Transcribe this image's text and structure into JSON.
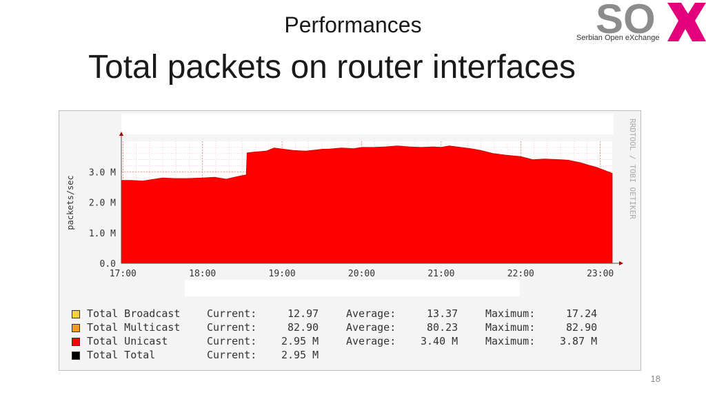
{
  "slide": {
    "subtitle": "Performances",
    "title": "Total packets on router interfaces",
    "page_number": "18"
  },
  "logo": {
    "text": "SOX",
    "tagline": "Serbian Open eXchange",
    "colors": {
      "gray": "#8c8c8c",
      "pink": "#e4007c"
    }
  },
  "chart_data": {
    "type": "area",
    "ylabel": "packets/sec",
    "side_label": "RRDTOOL / TOBI OETIKER",
    "x_ticks": [
      "17:00",
      "18:00",
      "19:00",
      "20:00",
      "21:00",
      "22:00",
      "23:00"
    ],
    "x_tick_hours": [
      17,
      18,
      19,
      20,
      21,
      22,
      23
    ],
    "xlim": [
      16.98,
      23.15
    ],
    "y_ticks": [
      "0.0",
      "1.0 M",
      "2.0 M",
      "3.0 M"
    ],
    "y_tick_values": [
      0,
      1.0,
      2.0,
      3.0
    ],
    "ylim": [
      0,
      4.0
    ],
    "y_unit": "M",
    "area_color": "#ff0000",
    "grid": true,
    "series": [
      {
        "name": "Total Unicast",
        "x": [
          16.98,
          17.1,
          17.25,
          17.4,
          17.5,
          17.65,
          17.8,
          18.0,
          18.15,
          18.3,
          18.4,
          18.5,
          18.55,
          18.56,
          18.65,
          18.8,
          18.9,
          19.0,
          19.15,
          19.3,
          19.5,
          19.6,
          19.75,
          19.9,
          20.0,
          20.15,
          20.3,
          20.45,
          20.6,
          20.75,
          20.9,
          21.0,
          21.1,
          21.25,
          21.4,
          21.5,
          21.65,
          21.8,
          22.0,
          22.15,
          22.3,
          22.5,
          22.6,
          22.75,
          22.85,
          22.95,
          23.05,
          23.15
        ],
        "y": [
          2.72,
          2.72,
          2.7,
          2.76,
          2.8,
          2.78,
          2.78,
          2.8,
          2.82,
          2.76,
          2.82,
          2.88,
          2.9,
          3.62,
          3.65,
          3.68,
          3.78,
          3.75,
          3.7,
          3.68,
          3.74,
          3.75,
          3.78,
          3.76,
          3.8,
          3.8,
          3.82,
          3.85,
          3.82,
          3.8,
          3.82,
          3.8,
          3.85,
          3.8,
          3.75,
          3.7,
          3.6,
          3.55,
          3.5,
          3.4,
          3.42,
          3.4,
          3.38,
          3.3,
          3.22,
          3.15,
          3.05,
          2.95
        ]
      }
    ],
    "legend": [
      {
        "label": "Total Broadcast",
        "color": "#f5d23c",
        "current": "12.97",
        "average": "13.37",
        "maximum": "17.24"
      },
      {
        "label": "Total Multicast",
        "color": "#f59a23",
        "current": "82.90",
        "average": "80.23",
        "maximum": "82.90"
      },
      {
        "label": "Total Unicast",
        "color": "#ff0000",
        "current": "2.95 M",
        "average": "3.40 M",
        "maximum": "3.87 M"
      },
      {
        "label": "Total Total",
        "color": "#000000",
        "current": "2.95 M",
        "average": "",
        "maximum": ""
      }
    ],
    "legend_labels": {
      "current": "Current:",
      "average": "Average:",
      "maximum": "Maximum:"
    }
  }
}
